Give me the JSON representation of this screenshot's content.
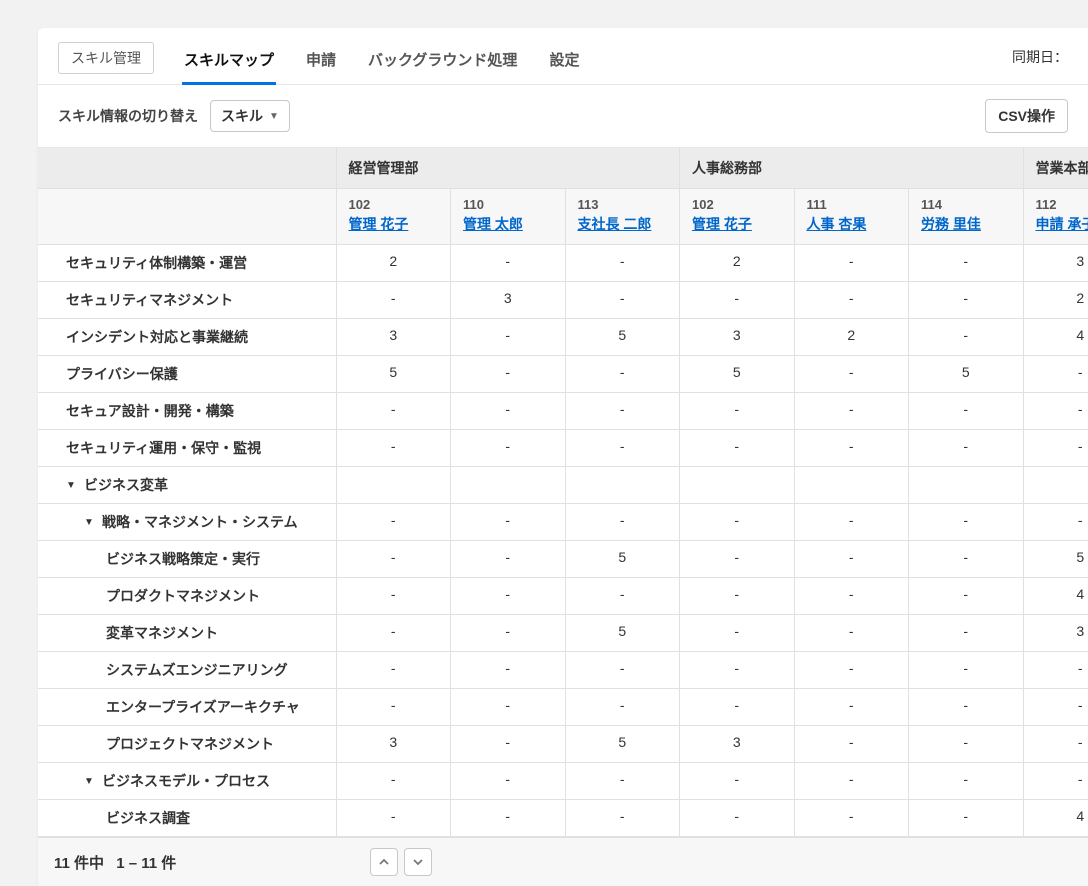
{
  "tabs": {
    "items": [
      {
        "label": "スキル管理",
        "outlined": true,
        "active": false
      },
      {
        "label": "スキルマップ",
        "outlined": false,
        "active": true
      },
      {
        "label": "申請",
        "outlined": false,
        "active": false
      },
      {
        "label": "バックグラウンド処理",
        "outlined": false,
        "active": false
      },
      {
        "label": "設定",
        "outlined": false,
        "active": false
      }
    ],
    "sync_label": "同期日："
  },
  "toolbar": {
    "switch_label": "スキル情報の切り替え",
    "dropdown_value": "スキル",
    "csv_label": "CSV操作"
  },
  "table": {
    "departments": [
      {
        "name": "経営管理部",
        "span": 3
      },
      {
        "name": "人事総務部",
        "span": 3
      },
      {
        "name": "営業本部",
        "span": 1
      }
    ],
    "persons": [
      {
        "emp_id": "102",
        "name": "管理 花子"
      },
      {
        "emp_id": "110",
        "name": "管理 太郎"
      },
      {
        "emp_id": "113",
        "name": "支社長 二郎"
      },
      {
        "emp_id": "102",
        "name": "管理 花子"
      },
      {
        "emp_id": "111",
        "name": "人事 杏果"
      },
      {
        "emp_id": "114",
        "name": "労務 里佳"
      },
      {
        "emp_id": "112",
        "name": "申請 承子"
      }
    ],
    "rows": [
      {
        "label": "セキュリティ体制構築・運営",
        "indent": 1,
        "expandable": false,
        "values": [
          "2",
          "-",
          "-",
          "2",
          "-",
          "-",
          "3"
        ]
      },
      {
        "label": "セキュリティマネジメント",
        "indent": 1,
        "expandable": false,
        "values": [
          "-",
          "3",
          "-",
          "-",
          "-",
          "-",
          "2"
        ]
      },
      {
        "label": "インシデント対応と事業継続",
        "indent": 1,
        "expandable": false,
        "values": [
          "3",
          "-",
          "5",
          "3",
          "2",
          "-",
          "4"
        ]
      },
      {
        "label": "プライバシー保護",
        "indent": 1,
        "expandable": false,
        "values": [
          "5",
          "-",
          "-",
          "5",
          "-",
          "5",
          "-"
        ]
      },
      {
        "label": "セキュア設計・開発・構築",
        "indent": 1,
        "expandable": false,
        "values": [
          "-",
          "-",
          "-",
          "-",
          "-",
          "-",
          "-"
        ]
      },
      {
        "label": "セキュリティ運用・保守・監視",
        "indent": 1,
        "expandable": false,
        "values": [
          "-",
          "-",
          "-",
          "-",
          "-",
          "-",
          "-"
        ]
      },
      {
        "label": "ビジネス変革",
        "indent": 1,
        "expandable": true,
        "expanded": true,
        "category": true,
        "values": []
      },
      {
        "label": "戦略・マネジメント・システム",
        "indent": 2,
        "expandable": true,
        "expanded": true,
        "values": [
          "-",
          "-",
          "-",
          "-",
          "-",
          "-",
          "-"
        ]
      },
      {
        "label": "ビジネス戦略策定・実行",
        "indent": 3,
        "expandable": false,
        "values": [
          "-",
          "-",
          "5",
          "-",
          "-",
          "-",
          "5"
        ]
      },
      {
        "label": "プロダクトマネジメント",
        "indent": 3,
        "expandable": false,
        "values": [
          "-",
          "-",
          "-",
          "-",
          "-",
          "-",
          "4"
        ]
      },
      {
        "label": "変革マネジメント",
        "indent": 3,
        "expandable": false,
        "values": [
          "-",
          "-",
          "5",
          "-",
          "-",
          "-",
          "3"
        ]
      },
      {
        "label": "システムズエンジニアリング",
        "indent": 3,
        "expandable": false,
        "values": [
          "-",
          "-",
          "-",
          "-",
          "-",
          "-",
          "-"
        ]
      },
      {
        "label": "エンタープライズアーキクチャ",
        "indent": 3,
        "expandable": false,
        "values": [
          "-",
          "-",
          "-",
          "-",
          "-",
          "-",
          "-"
        ]
      },
      {
        "label": "プロジェクトマネジメント",
        "indent": 3,
        "expandable": false,
        "values": [
          "3",
          "-",
          "5",
          "3",
          "-",
          "-",
          "-"
        ]
      },
      {
        "label": "ビジネスモデル・プロセス",
        "indent": 2,
        "expandable": true,
        "expanded": true,
        "values": [
          "-",
          "-",
          "-",
          "-",
          "-",
          "-",
          "-"
        ]
      },
      {
        "label": "ビジネス調査",
        "indent": 3,
        "expandable": false,
        "values": [
          "-",
          "-",
          "-",
          "-",
          "-",
          "-",
          "4"
        ]
      }
    ]
  },
  "pagination": {
    "total_label": "11 件中",
    "range_label": "1 – 11 件"
  },
  "colors": {
    "link": "#0066cc",
    "tab_active_underline": "#0073e6",
    "header_bg": "#ececec",
    "subheader_bg": "#f7f7f7",
    "border": "#e0e0e0",
    "page_bg": "#f2f2f2"
  }
}
